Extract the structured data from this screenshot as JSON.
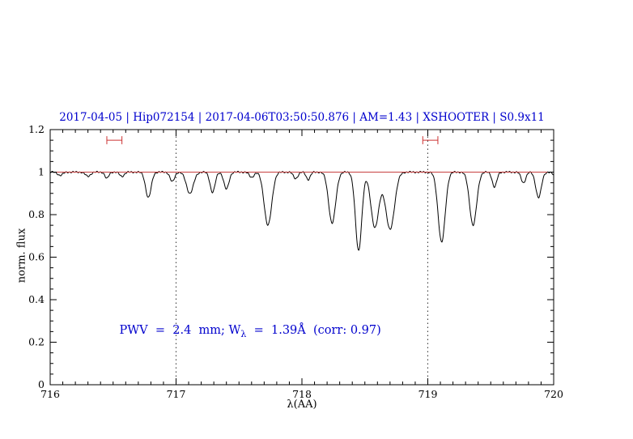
{
  "chart_data": {
    "type": "line",
    "title": "2017-04-05 | Hip072154 | 2017-04-06T03:50:50.876 | AM=1.43 | XSHOOTER | S0.9x11",
    "xlabel": "λ(AA)",
    "ylabel": "norm. flux",
    "xlim": [
      716,
      720
    ],
    "ylim": [
      0,
      1.2
    ],
    "grid": "off",
    "legend": "none",
    "xticks": [
      {
        "v": 716,
        "label": "716"
      },
      {
        "v": 717,
        "label": "717"
      },
      {
        "v": 718,
        "label": "718"
      },
      {
        "v": 719,
        "label": "719"
      },
      {
        "v": 720,
        "label": "720"
      }
    ],
    "yticks": [
      {
        "v": 0,
        "label": "0"
      },
      {
        "v": 0.2,
        "label": "0.2"
      },
      {
        "v": 0.4,
        "label": "0.4"
      },
      {
        "v": 0.6,
        "label": "0.6"
      },
      {
        "v": 0.8,
        "label": "0.8"
      },
      {
        "v": 1,
        "label": "1"
      },
      {
        "v": 1.2,
        "label": "1.2"
      }
    ],
    "x_minor_step": 0.1,
    "y_minor_step": 0.05,
    "continuum_level": 1.0,
    "vlines": [
      717,
      719
    ],
    "absorption_lines": [
      {
        "center": 716.08,
        "depth": 0.015,
        "sigma": 0.02
      },
      {
        "center": 716.3,
        "depth": 0.02,
        "sigma": 0.02
      },
      {
        "center": 716.45,
        "depth": 0.03,
        "sigma": 0.015
      },
      {
        "center": 716.57,
        "depth": 0.02,
        "sigma": 0.018
      },
      {
        "center": 716.78,
        "depth": 0.12,
        "sigma": 0.022
      },
      {
        "center": 716.97,
        "depth": 0.045,
        "sigma": 0.018
      },
      {
        "center": 717.11,
        "depth": 0.1,
        "sigma": 0.028
      },
      {
        "center": 717.29,
        "depth": 0.095,
        "sigma": 0.02
      },
      {
        "center": 717.4,
        "depth": 0.08,
        "sigma": 0.02
      },
      {
        "center": 717.6,
        "depth": 0.025,
        "sigma": 0.018
      },
      {
        "center": 717.73,
        "depth": 0.25,
        "sigma": 0.03
      },
      {
        "center": 717.95,
        "depth": 0.03,
        "sigma": 0.018
      },
      {
        "center": 718.05,
        "depth": 0.035,
        "sigma": 0.016
      },
      {
        "center": 718.24,
        "depth": 0.24,
        "sigma": 0.028
      },
      {
        "center": 718.45,
        "depth": 0.37,
        "sigma": 0.025
      },
      {
        "center": 718.58,
        "depth": 0.26,
        "sigma": 0.032
      },
      {
        "center": 718.7,
        "depth": 0.27,
        "sigma": 0.035
      },
      {
        "center": 719.11,
        "depth": 0.33,
        "sigma": 0.028
      },
      {
        "center": 719.36,
        "depth": 0.25,
        "sigma": 0.028
      },
      {
        "center": 719.53,
        "depth": 0.07,
        "sigma": 0.018
      },
      {
        "center": 719.76,
        "depth": 0.05,
        "sigma": 0.018
      },
      {
        "center": 719.88,
        "depth": 0.12,
        "sigma": 0.022
      },
      {
        "center": 720.05,
        "depth": 0.06,
        "sigma": 0.03
      }
    ],
    "range_markers": [
      {
        "center": 716.51,
        "halfwidth": 0.06,
        "y": 1.15
      },
      {
        "center": 719.02,
        "halfwidth": 0.06,
        "y": 1.15
      }
    ],
    "annotation": {
      "prefix": "PWV  =  2.4  mm; W",
      "sub": "λ",
      "suffix": "  =  1.39Å  (corr: 0.97)",
      "x": 716.55,
      "y": 0.225
    },
    "colors": {
      "spectrum": "#000000",
      "continuum": "#c84040",
      "markers": "#cc3333",
      "title": "#0000cd",
      "annotation": "#0000cd",
      "vline": "#000000",
      "frame": "#000000"
    }
  }
}
